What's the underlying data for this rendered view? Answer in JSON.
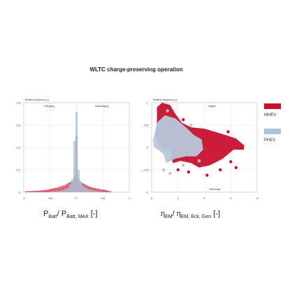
{
  "figure": {
    "title": "WLTC charge-preserving operation",
    "legend": [
      {
        "name": "MHEV",
        "color": "#c8102e"
      },
      {
        "name": "PHEV",
        "color": "#a9c4dc"
      }
    ]
  },
  "chart_data": [
    {
      "type": "bar",
      "ylabel": "Relative frequency [-]",
      "xlabel_main": "P",
      "xlabel_sub1": "Batt",
      "xlabel_sep": "/ P",
      "xlabel_sub2": "Batt, MAX",
      "xlabel_unit": " [-]",
      "xlim": [
        -1,
        1
      ],
      "ylim": [
        0,
        0.4
      ],
      "xticks": [
        "-1",
        "-0.5",
        "0",
        "0.5",
        "1"
      ],
      "yticks": [
        "0",
        "0.1",
        "0.2",
        "0.3",
        "0.4"
      ],
      "annotations": [
        "Charging",
        "Discharging"
      ],
      "bin_width": 0.04,
      "bin_starts": [
        -0.98,
        -0.94,
        -0.9,
        -0.86,
        -0.82,
        -0.78,
        -0.74,
        -0.7,
        -0.66,
        -0.62,
        -0.58,
        -0.54,
        -0.5,
        -0.46,
        -0.42,
        -0.38,
        -0.34,
        -0.3,
        -0.26,
        -0.22,
        -0.18,
        -0.14,
        -0.1,
        -0.06,
        -0.02,
        0.02,
        0.06,
        0.1,
        0.14,
        0.18,
        0.22,
        0.26,
        0.3,
        0.34,
        0.38,
        0.42,
        0.46,
        0.5,
        0.54,
        0.58,
        0.62
      ],
      "series": [
        {
          "name": "MHEV",
          "color": "#c8102e",
          "values": [
            0.004,
            0.004,
            0.005,
            0.005,
            0.006,
            0.006,
            0.007,
            0.008,
            0.009,
            0.01,
            0.011,
            0.013,
            0.015,
            0.017,
            0.019,
            0.021,
            0.024,
            0.027,
            0.03,
            0.034,
            0.04,
            0.045,
            0.05,
            0.07,
            0.25,
            0.06,
            0.045,
            0.04,
            0.035,
            0.03,
            0.026,
            0.022,
            0.02,
            0.018,
            0.016,
            0.014,
            0.012,
            0.012,
            0.01,
            0.006,
            0.004
          ]
        },
        {
          "name": "PHEV",
          "color": "#a9c4dc",
          "values": [
            0,
            0,
            0,
            0,
            0,
            0,
            0,
            0,
            0,
            0,
            0,
            0,
            0.003,
            0.003,
            0.004,
            0.005,
            0.006,
            0.008,
            0.01,
            0.015,
            0.02,
            0.035,
            0.06,
            0.23,
            0.36,
            0.1,
            0.05,
            0.03,
            0.02,
            0.015,
            0.012,
            0.01,
            0.007,
            0.005,
            0.004,
            0.003,
            0.002,
            0,
            0,
            0,
            0
          ]
        }
      ]
    },
    {
      "type": "scatter",
      "ylabel": "Relative frequency [-]",
      "xlabel_main": "η",
      "xlabel_sub1": "EM",
      "xlabel_sep": "/ η",
      "xlabel_sub2": "EM, Eck, Gen",
      "xlabel_unit": " [-]",
      "xlim": [
        0,
        4
      ],
      "ylim": [
        -1,
        1
      ],
      "xticks": [
        "0",
        "1",
        "2",
        "3",
        "4"
      ],
      "yticks": [
        "-1",
        "-0.5",
        "0",
        "0.5",
        "1"
      ],
      "annotations": [
        "Engine",
        "Generator"
      ],
      "regions": [
        {
          "name": "MHEV",
          "color": "#c8102e",
          "polygon": [
            [
              0.2,
              0.9
            ],
            [
              0.4,
              1.0
            ],
            [
              0.7,
              0.95
            ],
            [
              0.9,
              0.75
            ],
            [
              1.15,
              0.55
            ],
            [
              1.5,
              0.45
            ],
            [
              2.0,
              0.42
            ],
            [
              2.4,
              0.35
            ],
            [
              2.8,
              0.28
            ],
            [
              3.2,
              0.2
            ],
            [
              3.5,
              0.05
            ],
            [
              3.5,
              -0.05
            ],
            [
              3.1,
              -0.05
            ],
            [
              2.7,
              -0.25
            ],
            [
              2.2,
              -0.4
            ],
            [
              1.8,
              -0.45
            ],
            [
              1.5,
              -0.35
            ],
            [
              1.1,
              -0.3
            ],
            [
              0.8,
              -0.35
            ],
            [
              0.7,
              -0.05
            ],
            [
              0.35,
              0.0
            ],
            [
              0.15,
              0.25
            ],
            [
              0.2,
              0.6
            ]
          ]
        },
        {
          "name": "PHEV",
          "color": "#b7c8d9",
          "polygon": [
            [
              0.05,
              0.15
            ],
            [
              0.2,
              0.55
            ],
            [
              0.5,
              0.72
            ],
            [
              0.9,
              0.65
            ],
            [
              1.3,
              0.45
            ],
            [
              1.6,
              0.28
            ],
            [
              1.9,
              0.18
            ],
            [
              1.95,
              -0.05
            ],
            [
              1.7,
              -0.2
            ],
            [
              1.3,
              -0.2
            ],
            [
              0.9,
              -0.25
            ],
            [
              0.55,
              -0.35
            ],
            [
              0.45,
              -0.15
            ],
            [
              0.25,
              -0.05
            ],
            [
              0.1,
              0.0
            ]
          ]
        }
      ],
      "points": [
        {
          "series": "MHEV",
          "x": 3.0,
          "y": -0.32
        },
        {
          "series": "MHEV",
          "x": 3.2,
          "y": -0.45
        },
        {
          "series": "MHEV",
          "x": 2.6,
          "y": -0.5
        },
        {
          "series": "MHEV",
          "x": 1.4,
          "y": -0.55
        },
        {
          "series": "MHEV",
          "x": 1.0,
          "y": -0.5
        },
        {
          "series": "MHEV",
          "x": 2.1,
          "y": -0.62
        },
        {
          "series": "MHEV",
          "x": 1.2,
          "y": 0.62
        },
        {
          "series": "MHEV",
          "x": 2.9,
          "y": 0.35
        },
        {
          "series": "PHEV",
          "x": 0.45,
          "y": -0.5
        },
        {
          "series": "PHEV",
          "x": 0.7,
          "y": -0.58
        },
        {
          "series": "PHEV",
          "x": 1.2,
          "y": -0.4
        },
        {
          "series": "PHEV",
          "x": 1.5,
          "y": 0.5
        },
        {
          "series": "PHEV",
          "x": 0.6,
          "y": 0.82
        },
        {
          "series": "PHEV",
          "x": 1.8,
          "y": -0.3
        }
      ]
    }
  ]
}
